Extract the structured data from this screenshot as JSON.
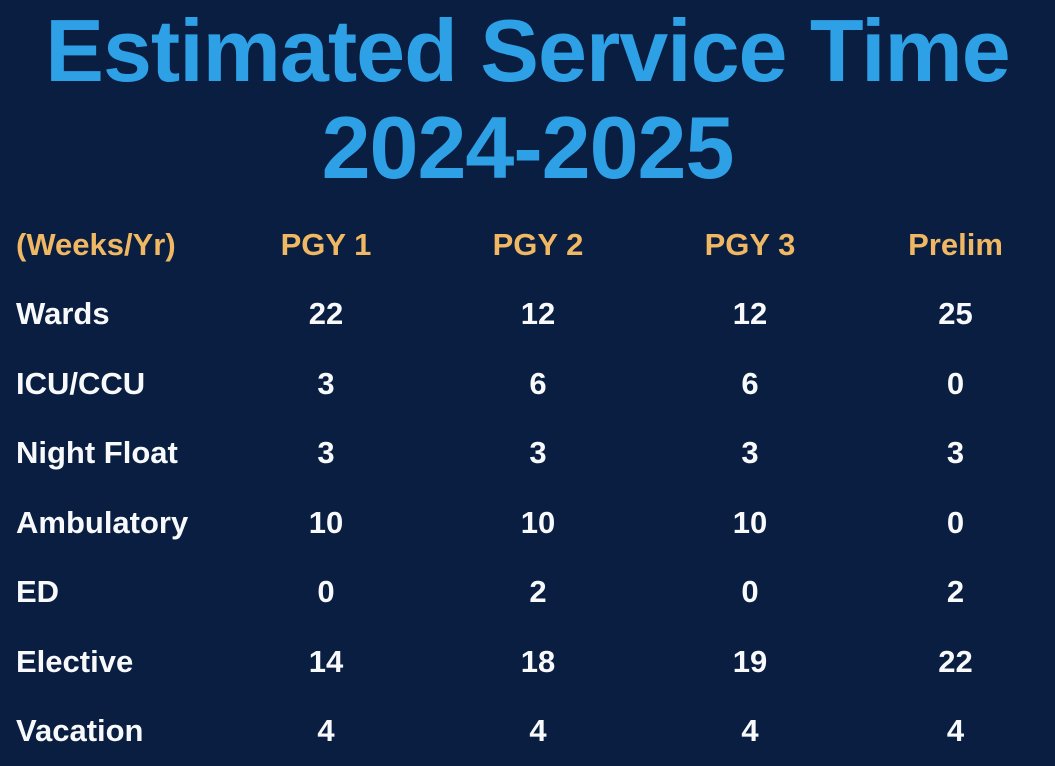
{
  "title": {
    "line1": "Estimated Service Time",
    "line2": "2024-2025"
  },
  "colors": {
    "background": "#0A1E42",
    "title_blue": "#2EA0E6",
    "header_orange": "#F0B863",
    "body_white": "#F8F9FB"
  },
  "chart_data": {
    "type": "table",
    "title": "Estimated Service Time 2024-2025",
    "unit_label": "(Weeks/Yr)",
    "columns": [
      "PGY 1",
      "PGY 2",
      "PGY 3",
      "Prelim"
    ],
    "rows": [
      {
        "label": "Wards",
        "values": [
          22,
          12,
          12,
          25
        ]
      },
      {
        "label": "ICU/CCU",
        "values": [
          3,
          6,
          6,
          0
        ]
      },
      {
        "label": "Night Float",
        "values": [
          3,
          3,
          3,
          3
        ]
      },
      {
        "label": "Ambulatory",
        "values": [
          10,
          10,
          10,
          0
        ]
      },
      {
        "label": "ED",
        "values": [
          0,
          2,
          0,
          2
        ]
      },
      {
        "label": "Elective",
        "values": [
          14,
          18,
          19,
          22
        ]
      },
      {
        "label": "Vacation",
        "values": [
          4,
          4,
          4,
          4
        ]
      }
    ]
  }
}
